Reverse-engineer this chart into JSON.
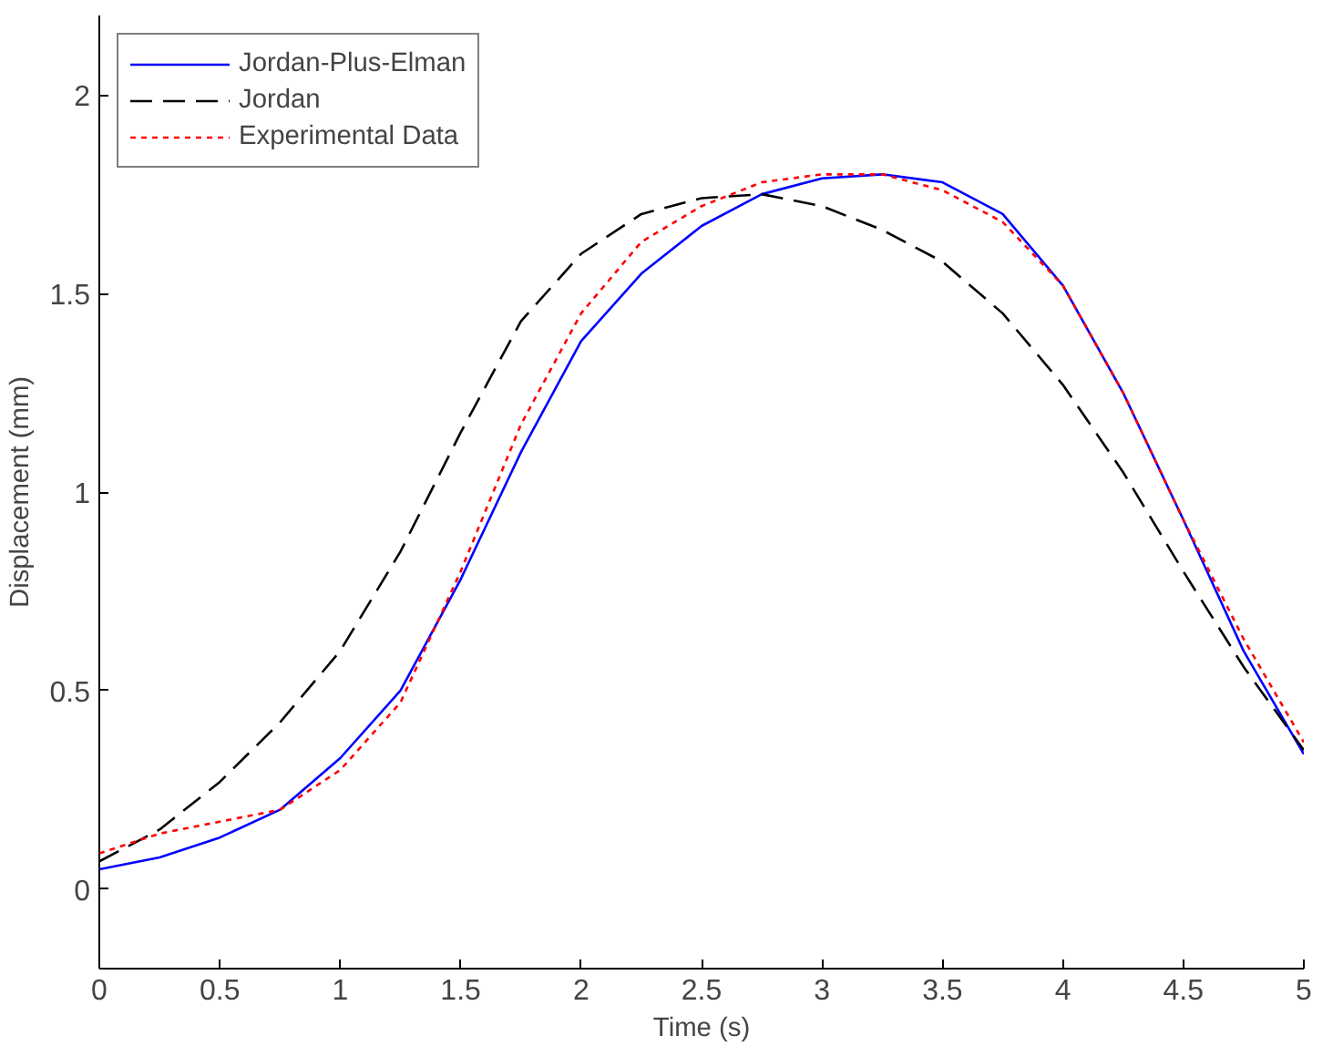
{
  "chart_data": {
    "type": "line",
    "xlabel": "Time (s)",
    "ylabel": "Displacement (mm)",
    "x": [
      0,
      0.25,
      0.5,
      0.75,
      1,
      1.25,
      1.5,
      1.75,
      2,
      2.25,
      2.5,
      2.75,
      3,
      3.25,
      3.5,
      3.75,
      4,
      4.25,
      4.5,
      4.75,
      5
    ],
    "xlim": [
      0,
      5
    ],
    "xticks": [
      0,
      0.5,
      1,
      1.5,
      2,
      2.5,
      3,
      3.5,
      4,
      4.5,
      5
    ],
    "ylim": [
      -0.2,
      2.2
    ],
    "yticks": [
      0,
      0.5,
      1,
      1.5,
      2
    ],
    "grid": false,
    "legend": "top left",
    "marker": "none",
    "series": [
      {
        "name": "Jordan-Plus-Elman",
        "color": "#0000ff",
        "line_style": "solid",
        "values": [
          0.05,
          0.08,
          0.13,
          0.2,
          0.33,
          0.5,
          0.78,
          1.1,
          1.38,
          1.55,
          1.67,
          1.75,
          1.79,
          1.8,
          1.78,
          1.7,
          1.52,
          1.25,
          0.93,
          0.6,
          0.34
        ]
      },
      {
        "name": "Jordan",
        "color": "#000000",
        "line_style": "dashed",
        "values": [
          0.07,
          0.15,
          0.27,
          0.42,
          0.6,
          0.85,
          1.15,
          1.43,
          1.6,
          1.7,
          1.74,
          1.75,
          1.72,
          1.66,
          1.58,
          1.45,
          1.27,
          1.05,
          0.8,
          0.56,
          0.35
        ]
      },
      {
        "name": "Experimental Data",
        "color": "#ff0000",
        "line_style": "dotted",
        "values": [
          0.09,
          0.14,
          0.17,
          0.2,
          0.3,
          0.47,
          0.8,
          1.17,
          1.45,
          1.63,
          1.72,
          1.78,
          1.8,
          1.8,
          1.76,
          1.68,
          1.52,
          1.25,
          0.93,
          0.63,
          0.37
        ]
      }
    ]
  }
}
